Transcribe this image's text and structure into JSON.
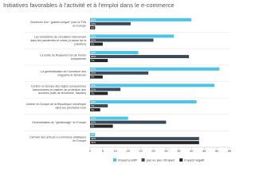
{
  "chart_data": {
    "type": "hbar",
    "title": "Initiatives favorables à l'activité et à l'emploi dans le e-commerce",
    "categories": [
      "Ouverture d'un \"guichet unique\" pour la TVA en Europe",
      "Les restrictions de circulation intervenant dans les pandémies et crises (à cause de la pollution)",
      "La sortie du Royaume-Uni de l'union européenne",
      "La généralisation de l'ouverture des magasins le dimanche",
      "Centrer en Europe des règles européennes harmonisées en matière de protection des données (lutte de terrorisme, fraudes)",
      "Centrer en Europe de la République numérique dans les prochains mois",
      "Généralisation du \"géoblocage\" en Europe",
      "L'arrivée des acteurs e-commerce asiatiques en Europe"
    ],
    "series": [
      {
        "name": "Impact positif",
        "color": "#4cc4ea",
        "values": [
          40,
          33,
          19,
          51,
          49,
          42,
          15,
          2
        ],
        "value_labels": [
          "40%",
          "33%",
          "19%",
          "51%",
          "49%",
          "42%",
          "15%",
          "2%"
        ]
      },
      {
        "name": "pas ou peu d'impact",
        "color": "#3b4a5a",
        "values": [
          16,
          25,
          39,
          23,
          12,
          7,
          30,
          43
        ],
        "value_labels": [
          "16%",
          "25%",
          "39%",
          "23%",
          "12%",
          "7%",
          "30%",
          "43%"
        ]
      },
      {
        "name": "Impact négatif",
        "color": "#262626",
        "values": [
          2,
          5,
          7,
          5,
          7,
          4,
          9,
          43
        ],
        "value_labels": [
          "2%",
          "5%",
          "7%",
          "5%",
          "7%",
          "4%",
          "9%",
          "43%"
        ]
      }
    ],
    "xlim": [
      0,
      55
    ],
    "xticks": [
      0,
      5,
      10,
      15,
      20,
      25,
      30,
      35,
      40,
      45,
      50,
      55
    ]
  }
}
